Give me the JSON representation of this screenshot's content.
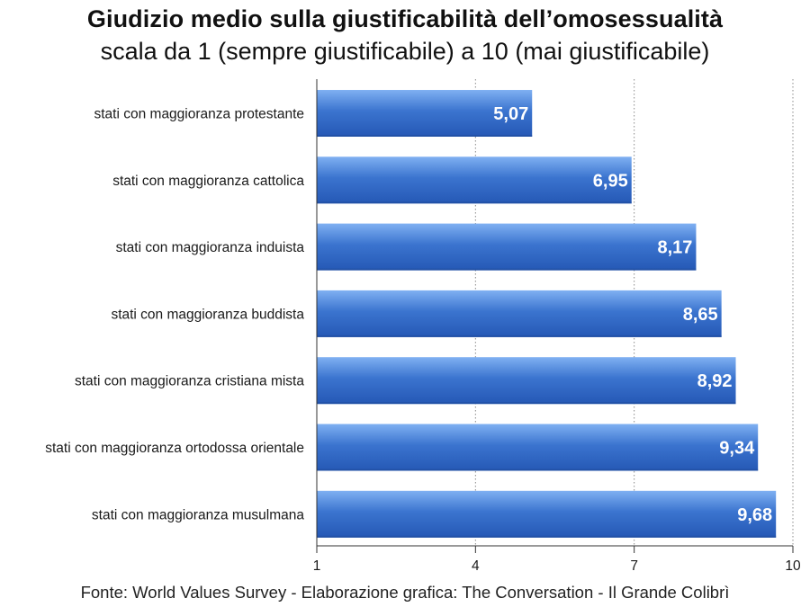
{
  "chart_data": {
    "type": "bar",
    "orientation": "horizontal",
    "title": "Giudizio medio sulla giustificabilità dell’omosessualità",
    "subtitle": "scala da 1 (sempre giustificabile) a 10 (mai giustificabile)",
    "categories": [
      "stati con maggioranza protestante",
      "stati con maggioranza cattolica",
      "stati con maggioranza induista",
      "stati con maggioranza buddista",
      "stati con maggioranza cristiana mista",
      "stati con maggioranza ortodossa orientale",
      "stati con maggioranza musulmana"
    ],
    "values": [
      5.07,
      6.95,
      8.17,
      8.65,
      8.92,
      9.34,
      9.68
    ],
    "value_labels": [
      "5,07",
      "6,95",
      "8,17",
      "8,65",
      "8,92",
      "9,34",
      "9,68"
    ],
    "xlim": [
      1,
      10
    ],
    "xticks": [
      1,
      4,
      7,
      10
    ],
    "xtick_labels": [
      "1",
      "4",
      "7",
      "10"
    ],
    "grid": "vertical dotted",
    "xlabel": "",
    "ylabel": "",
    "bar_color": "#3b74cf",
    "bar_color_light": "#7fb0f2",
    "bar_color_dark": "#2558b5"
  },
  "source": "Fonte: World Values Survey - Elaborazione grafica: The Conversation - Il Grande Colibrì"
}
